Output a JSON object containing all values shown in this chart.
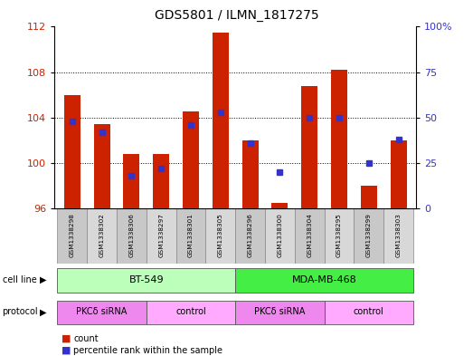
{
  "title": "GDS5801 / ILMN_1817275",
  "samples": [
    "GSM1338298",
    "GSM1338302",
    "GSM1338306",
    "GSM1338297",
    "GSM1338301",
    "GSM1338305",
    "GSM1338296",
    "GSM1338300",
    "GSM1338304",
    "GSM1338295",
    "GSM1338299",
    "GSM1338303"
  ],
  "counts": [
    106.0,
    103.4,
    100.8,
    100.8,
    104.5,
    111.5,
    102.0,
    96.5,
    106.8,
    108.2,
    98.0,
    102.0
  ],
  "percentiles": [
    48,
    42,
    18,
    22,
    46,
    53,
    36,
    20,
    50,
    50,
    25,
    38
  ],
  "ylim_left": [
    96,
    112
  ],
  "ylim_right": [
    0,
    100
  ],
  "yticks_left": [
    96,
    100,
    104,
    108,
    112
  ],
  "yticks_right": [
    0,
    25,
    50,
    75,
    100
  ],
  "bar_color": "#cc2200",
  "dot_color": "#3333cc",
  "cell_line_groups": [
    {
      "label": "BT-549",
      "start": 0,
      "end": 5,
      "color": "#bbffbb"
    },
    {
      "label": "MDA-MB-468",
      "start": 6,
      "end": 11,
      "color": "#44ee44"
    }
  ],
  "prot_spans": [
    {
      "label": "PKCδ siRNA",
      "start": 0,
      "end": 2,
      "color": "#ee88ee"
    },
    {
      "label": "control",
      "start": 3,
      "end": 5,
      "color": "#ffaaff"
    },
    {
      "label": "PKCδ siRNA",
      "start": 6,
      "end": 8,
      "color": "#ee88ee"
    },
    {
      "label": "control",
      "start": 9,
      "end": 11,
      "color": "#ffaaff"
    }
  ],
  "bg_color": "#ffffff",
  "sample_box_colors": [
    "#c8c8c8",
    "#d8d8d8"
  ]
}
